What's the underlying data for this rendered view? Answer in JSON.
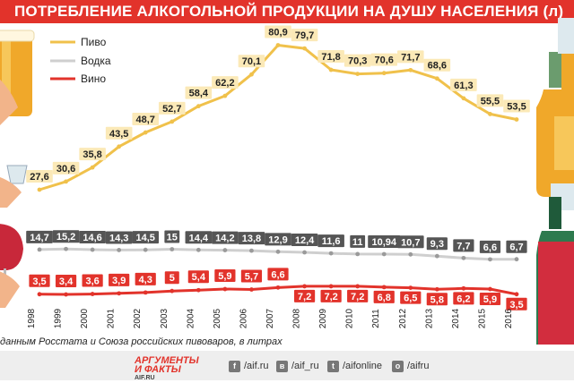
{
  "title": "ПОТРЕБЛЕНИЕ АЛКОГОЛЬНОЙ ПРОДУКЦИИ НА ДУШУ НАСЕЛЕНИЯ (л)",
  "source_note": "данным Росстата и Союза российских пивоваров, в литрах",
  "logo": {
    "line1": "АРГУМЕНТЫ",
    "line2": "И ФАКТЫ",
    "site": "AIF.RU"
  },
  "social": [
    {
      "icon": "facebook-icon",
      "glyph": "f",
      "label": "/aif.ru"
    },
    {
      "icon": "vk-icon",
      "glyph": "в",
      "label": "/aif_ru"
    },
    {
      "icon": "twitter-icon",
      "glyph": "t",
      "label": "/aifonline"
    },
    {
      "icon": "odnoklassniki-icon",
      "glyph": "о",
      "label": "/aifru"
    }
  ],
  "colors": {
    "beer": "#f0c14b",
    "vodka": "#cfcfcf",
    "wine": "#e2332b",
    "title_bg": "#e2332b",
    "beer_label_bg": "#fbe9b7",
    "vodka_label_bg": "#555555"
  },
  "chart_data": {
    "type": "line",
    "title": "ПОТРЕБЛЕНИЕ АЛКОГОЛЬНОЙ ПРОДУКЦИИ НА ДУШУ НАСЕЛЕНИЯ (л)",
    "xlabel": "",
    "ylabel": "",
    "ylim": [
      0,
      85
    ],
    "grid": false,
    "legend": "top-left",
    "categories": [
      "1998",
      "1999",
      "2000",
      "2001",
      "2002",
      "2003",
      "2004",
      "2005",
      "2006",
      "2007",
      "2008",
      "2009",
      "2010",
      "2011",
      "2012",
      "2013",
      "2014",
      "2015",
      "2016"
    ],
    "series": [
      {
        "name": "Пиво",
        "labels": [
          "27,6",
          "30,6",
          "35,8",
          "43,5",
          "48,7",
          "52,7",
          "58,4",
          "62,2",
          "70,1",
          "80,9",
          "79,7",
          "71,8",
          "70,3",
          "70,6",
          "71,7",
          "68,6",
          "61,3",
          "55,5",
          "53,5"
        ],
        "values": [
          27.6,
          30.6,
          35.8,
          43.5,
          48.7,
          52.7,
          58.4,
          62.2,
          70.1,
          80.9,
          79.7,
          71.8,
          70.3,
          70.6,
          71.7,
          68.6,
          61.3,
          55.5,
          53.5
        ]
      },
      {
        "name": "Водка",
        "labels": [
          "14,7",
          "15,2",
          "14,6",
          "14,3",
          "14,5",
          "15",
          "14,4",
          "14,2",
          "13,8",
          "12,9",
          "12,4",
          "11,6",
          "11",
          "10,94",
          "10,7",
          "9,3",
          "7,7",
          "6,6",
          "6,7"
        ],
        "values": [
          14.7,
          15.2,
          14.6,
          14.3,
          14.5,
          15,
          14.4,
          14.2,
          13.8,
          12.9,
          12.4,
          11.6,
          11,
          10.94,
          10.7,
          9.3,
          7.7,
          6.6,
          6.7
        ]
      },
      {
        "name": "Вино",
        "labels": [
          "3,5",
          "3,4",
          "3,6",
          "3,9",
          "4,3",
          "5",
          "5,4",
          "5,9",
          "5,7",
          "6,6",
          "7,2",
          "7,2",
          "7,2",
          "6,8",
          "6,5",
          "5,8",
          "6,2",
          "5,9",
          "3,5"
        ],
        "values": [
          3.5,
          3.4,
          3.6,
          3.9,
          4.3,
          5,
          5.4,
          5.9,
          5.7,
          6.6,
          7.2,
          7.2,
          7.2,
          6.8,
          6.5,
          5.8,
          6.2,
          5.9,
          3.5
        ]
      }
    ]
  }
}
